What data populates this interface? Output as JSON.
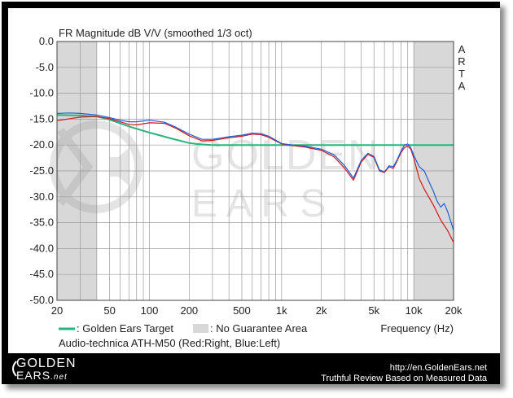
{
  "chart_data": {
    "type": "line",
    "title": "FR Magnitude dB V/V (smoothed 1/3 oct)",
    "xlabel": "Frequency (Hz)",
    "ylabel": "",
    "x_scale": "log",
    "xlim": [
      20,
      20000
    ],
    "ylim": [
      -50,
      0
    ],
    "x_ticks": [
      20,
      50,
      100,
      200,
      500,
      1000,
      2000,
      5000,
      10000,
      20000
    ],
    "x_tick_labels": [
      "20",
      "50",
      "100",
      "200",
      "500",
      "1k",
      "2k",
      "5k",
      "10k",
      "20k"
    ],
    "y_ticks": [
      0,
      -5,
      -10,
      -15,
      -20,
      -25,
      -30,
      -35,
      -40,
      -45,
      -50
    ],
    "y_tick_labels": [
      "0.0",
      "-5.0",
      "-10.0",
      "-15.0",
      "-20.0",
      "-25.0",
      "-30.0",
      "-35.0",
      "-40.0",
      "-45.0",
      "-50.0"
    ],
    "grid": true,
    "side_label": [
      "A",
      "R",
      "T",
      "A"
    ],
    "watermark": {
      "line1": "GOLDEN",
      "line2": "E A R S"
    },
    "shaded_regions": [
      {
        "x": [
          20,
          40
        ],
        "label": "No Guarantee Area"
      },
      {
        "x": [
          10000,
          20000
        ],
        "label": "No Guarantee Area"
      }
    ],
    "legend": [
      {
        "label": ": Golden Ears Target",
        "color": "#2db27d",
        "kind": "line"
      },
      {
        "label": ": No Guarantee Area",
        "color": "#d8d8d8",
        "kind": "box"
      }
    ],
    "caption": "Audio-technica ATH-M50 (Red:Right, Blue:Left)",
    "series": [
      {
        "name": "Golden Ears Target",
        "color": "#2db27d",
        "x": [
          20,
          30,
          40,
          50,
          70,
          100,
          150,
          200,
          250,
          300,
          400,
          500,
          1000,
          2000,
          5000,
          10000,
          20000
        ],
        "y": [
          -14.2,
          -14.3,
          -14.5,
          -15.1,
          -16.4,
          -17.6,
          -18.8,
          -19.6,
          -19.9,
          -20.0,
          -20.0,
          -20.0,
          -20.0,
          -20.0,
          -20.0,
          -20.0,
          -20.0
        ]
      },
      {
        "name": "Right",
        "color": "#d21818",
        "x": [
          20,
          25,
          30,
          40,
          50,
          60,
          70,
          80,
          100,
          130,
          160,
          200,
          250,
          300,
          400,
          500,
          600,
          700,
          800,
          1000,
          1200,
          1500,
          1800,
          2000,
          2500,
          3000,
          3500,
          4000,
          4500,
          5000,
          5500,
          6000,
          6500,
          7000,
          7500,
          8000,
          8500,
          9000,
          9500,
          10000,
          11000,
          12000,
          14000,
          16000,
          18000,
          20000
        ],
        "y": [
          -15.3,
          -14.9,
          -14.6,
          -14.5,
          -14.9,
          -15.5,
          -16.0,
          -16.1,
          -15.7,
          -15.8,
          -16.8,
          -18.2,
          -19.2,
          -19.1,
          -18.6,
          -18.3,
          -17.9,
          -18.0,
          -18.5,
          -19.8,
          -20.1,
          -20.4,
          -20.8,
          -21.0,
          -22.3,
          -24.5,
          -26.8,
          -23.3,
          -21.8,
          -22.4,
          -25.0,
          -25.3,
          -24.2,
          -24.5,
          -23.0,
          -21.5,
          -20.5,
          -20.2,
          -20.8,
          -22.5,
          -26.5,
          -28.5,
          -31.5,
          -34.5,
          -36.5,
          -38.8
        ]
      },
      {
        "name": "Left",
        "color": "#1f5fd6",
        "x": [
          20,
          25,
          30,
          40,
          50,
          60,
          70,
          80,
          100,
          130,
          160,
          200,
          250,
          300,
          400,
          500,
          600,
          700,
          800,
          1000,
          1200,
          1500,
          1800,
          2000,
          2500,
          3000,
          3500,
          4000,
          4500,
          5000,
          5500,
          6000,
          6500,
          7000,
          7500,
          8000,
          8500,
          9000,
          9500,
          10000,
          11000,
          12000,
          13000,
          14000,
          15000,
          16000,
          17000,
          18000,
          20000
        ],
        "y": [
          -13.9,
          -13.8,
          -13.9,
          -14.2,
          -14.7,
          -15.2,
          -15.5,
          -15.5,
          -15.2,
          -15.6,
          -16.6,
          -17.9,
          -18.9,
          -18.9,
          -18.4,
          -18.1,
          -17.7,
          -17.8,
          -18.3,
          -19.7,
          -20.0,
          -20.2,
          -20.6,
          -20.8,
          -21.9,
          -24.0,
          -26.4,
          -23.0,
          -21.6,
          -22.2,
          -24.8,
          -25.2,
          -24.0,
          -24.2,
          -22.8,
          -21.2,
          -20.0,
          -19.8,
          -20.5,
          -22.0,
          -24.2,
          -25.0,
          -27.0,
          -28.8,
          -30.8,
          -32.0,
          -31.3,
          -32.8,
          -36.5
        ]
      }
    ]
  },
  "footer": {
    "brand_line1": "GOLDEN",
    "brand_line2": "EARS",
    "brand_suffix": ".net",
    "url": "http://en.GoldenEars.net",
    "tagline": "Truthful Review Based on Measured Data"
  }
}
